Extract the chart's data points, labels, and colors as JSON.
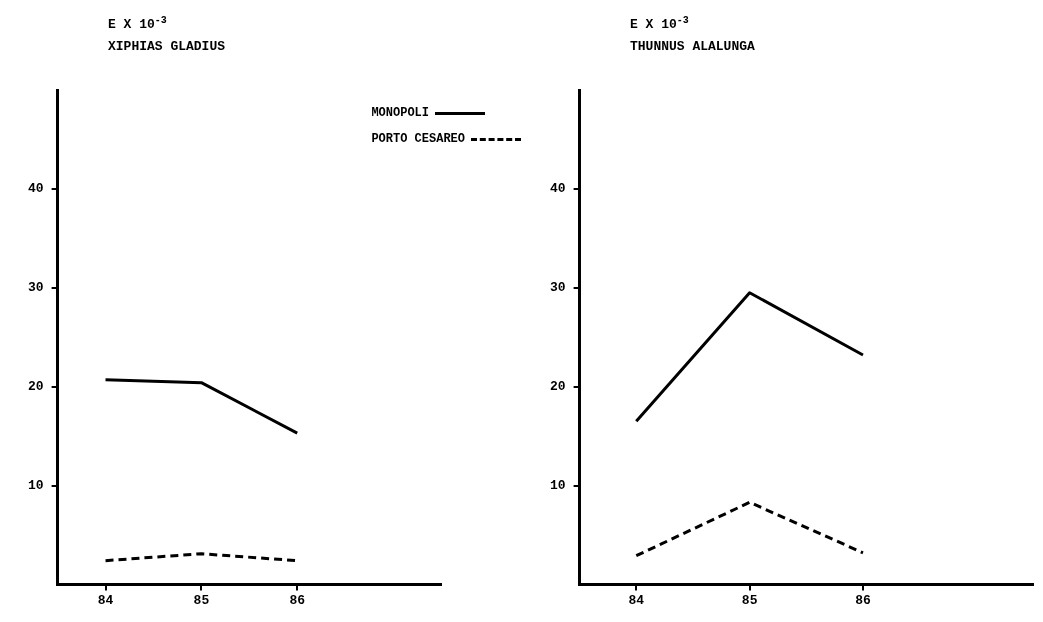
{
  "chart_data": [
    {
      "type": "line",
      "ylabel": "E X 10$^{-3}$",
      "title": "XIPHIAS GLADIUS",
      "x": [
        84,
        85,
        86
      ],
      "xlim": [
        83.5,
        87.5
      ],
      "xticks": [
        84,
        85,
        86
      ],
      "ylim": [
        0,
        50
      ],
      "yticks": [
        10,
        20,
        30,
        40
      ],
      "legend": "top right",
      "series": [
        {
          "name": "MONOPOLI",
          "color": "#000000",
          "line_style": "solid",
          "values": [
            20.7,
            20.4,
            15.3
          ]
        },
        {
          "name": "PORTO CESAREO",
          "color": "#000000",
          "line_style": "dashed",
          "values": [
            2.4,
            3.1,
            2.4
          ]
        }
      ]
    },
    {
      "type": "line",
      "ylabel": "E X 10$^{-3}$",
      "title": "THUNNUS ALALUNGA",
      "x": [
        84,
        85,
        86
      ],
      "xlim": [
        83.5,
        87.5
      ],
      "xticks": [
        84,
        85,
        86
      ],
      "ylim": [
        0,
        50
      ],
      "yticks": [
        10,
        20,
        30,
        40
      ],
      "legend": false,
      "series": [
        {
          "color": "#000000",
          "line_style": "solid",
          "values": [
            16.5,
            29.5,
            23.2
          ]
        },
        {
          "color": "#000000",
          "line_style": "dashed",
          "values": [
            2.9,
            8.3,
            3.2
          ]
        }
      ]
    }
  ]
}
